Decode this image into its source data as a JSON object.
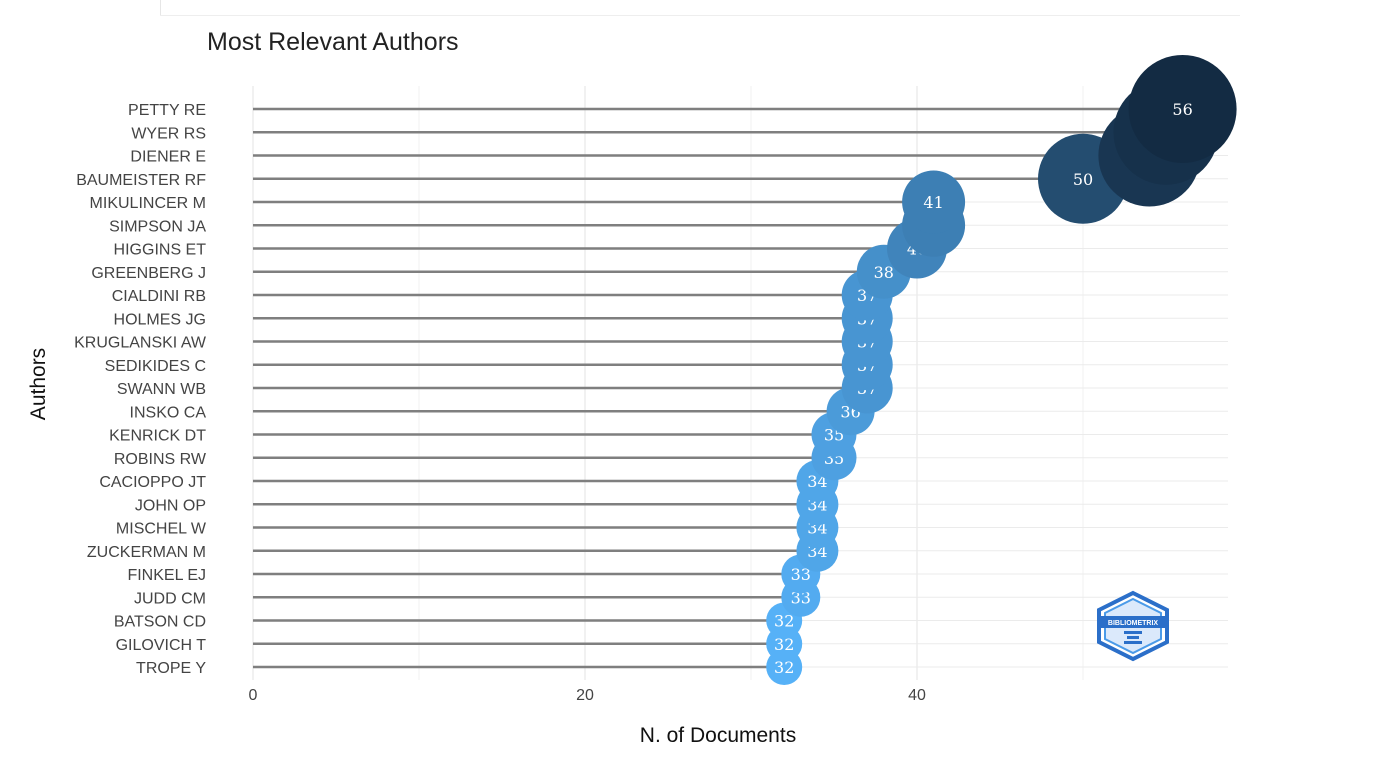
{
  "chart_data": {
    "type": "lollipop",
    "title": "Most Relevant Authors",
    "xlabel": "N. of Documents",
    "ylabel": "Authors",
    "xlim": [
      -3,
      59
    ],
    "xticks": [
      0,
      20,
      40
    ],
    "grid": true,
    "colors": {
      "max": "#132b43",
      "min": "#56b1f7",
      "stem": "#7f7f7f",
      "grid": "#ebebeb"
    },
    "categories": [
      "PETTY RE",
      "WYER RS",
      "DIENER E",
      "BAUMEISTER RF",
      "MIKULINCER M",
      "SIMPSON JA",
      "HIGGINS ET",
      "GREENBERG J",
      "CIALDINI RB",
      "HOLMES JG",
      "KRUGLANSKI AW",
      "SEDIKIDES C",
      "SWANN WB",
      "INSKO CA",
      "KENRICK DT",
      "ROBINS RW",
      "CACIOPPO JT",
      "JOHN OP",
      "MISCHEL W",
      "ZUCKERMAN M",
      "FINKEL EJ",
      "JUDD CM",
      "BATSON CD",
      "GILOVICH T",
      "TROPE Y"
    ],
    "values": [
      56,
      55,
      54,
      50,
      41,
      41,
      40,
      38,
      37,
      37,
      37,
      37,
      37,
      36,
      35,
      35,
      34,
      34,
      34,
      34,
      33,
      33,
      32,
      32,
      32
    ],
    "logo": {
      "name": "bibliometrix-logo-icon",
      "text": "BIBLIOMETRIX"
    }
  }
}
